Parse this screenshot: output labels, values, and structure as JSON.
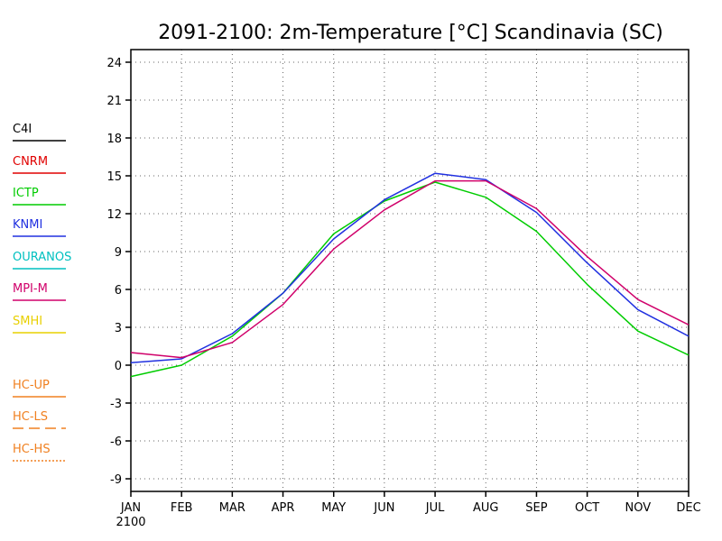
{
  "chart_data": {
    "type": "line",
    "title": "2091-2100: 2m-Temperature [°C] Scandinavia (SC)",
    "xlabel": "",
    "ylabel": "",
    "categories": [
      "JAN",
      "FEB",
      "MAR",
      "APR",
      "MAY",
      "JUN",
      "JUL",
      "AUG",
      "SEP",
      "OCT",
      "NOV",
      "DEC"
    ],
    "x_sublabel": "2100",
    "ylim": [
      -10,
      25
    ],
    "yticks": [
      -9,
      -6,
      -3,
      0,
      3,
      6,
      9,
      12,
      15,
      18,
      21,
      24
    ],
    "ytick_labels": [
      "-9",
      "-6",
      "-3",
      "0",
      "3",
      "6",
      "9",
      "12",
      "15",
      "18",
      "21",
      "24"
    ],
    "grid": true,
    "legend_position": "left",
    "legend": [
      {
        "name": "C4I",
        "color": "#000000",
        "dash": "solid"
      },
      {
        "name": "CNRM",
        "color": "#e00000",
        "dash": "solid"
      },
      {
        "name": "ICTP",
        "color": "#00cc00",
        "dash": "solid"
      },
      {
        "name": "KNMI",
        "color": "#2030e0",
        "dash": "solid"
      },
      {
        "name": "OURANOS",
        "color": "#00c0c0",
        "dash": "solid"
      },
      {
        "name": "MPI-M",
        "color": "#d0006a",
        "dash": "solid"
      },
      {
        "name": "SMHI",
        "color": "#e8d000",
        "dash": "solid"
      },
      {
        "name": "HC-UP",
        "color": "#f08020",
        "dash": "solid"
      },
      {
        "name": "HC-LS",
        "color": "#f08020",
        "dash": "longdash"
      },
      {
        "name": "HC-HS",
        "color": "#f08020",
        "dash": "dotted"
      }
    ],
    "series": [
      {
        "name": "ICTP",
        "color": "#00cc00",
        "values": [
          -0.9,
          0.0,
          2.3,
          5.7,
          10.4,
          13.0,
          14.5,
          13.3,
          10.6,
          6.4,
          2.7,
          0.8
        ]
      },
      {
        "name": "KNMI",
        "color": "#2030e0",
        "values": [
          0.2,
          0.5,
          2.5,
          5.7,
          10.0,
          13.1,
          15.2,
          14.7,
          12.1,
          8.1,
          4.4,
          2.3
        ]
      },
      {
        "name": "MPI-M",
        "color": "#d0006a",
        "values": [
          1.0,
          0.6,
          1.8,
          4.8,
          9.2,
          12.3,
          14.6,
          14.6,
          12.4,
          8.6,
          5.2,
          3.2
        ]
      }
    ]
  }
}
